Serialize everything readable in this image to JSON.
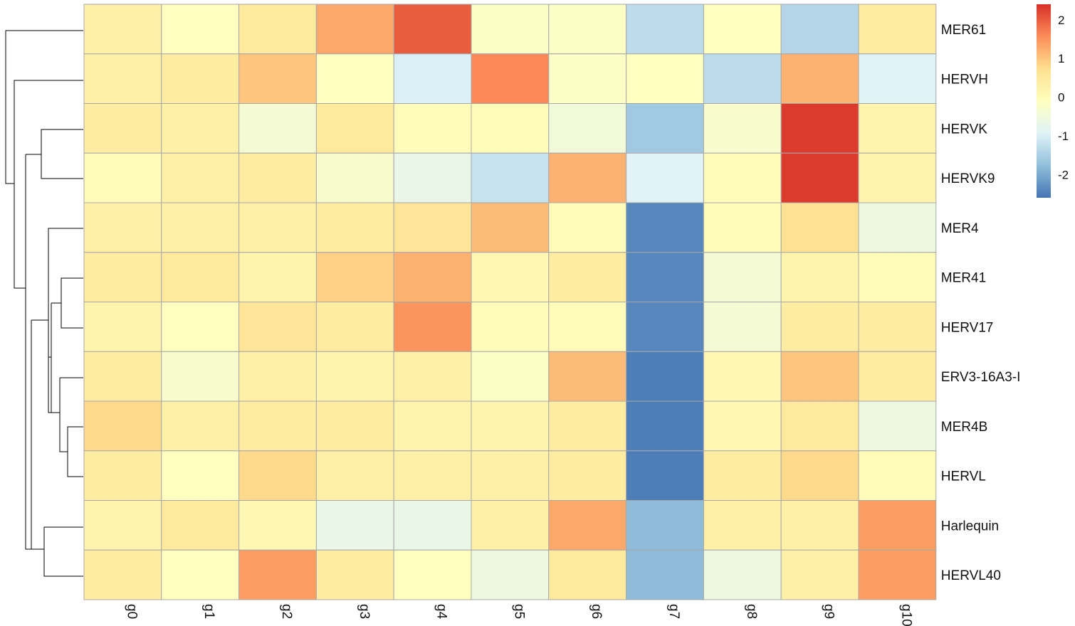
{
  "chart_data": {
    "type": "heatmap",
    "title": "",
    "rows": [
      "MER61",
      "HERVH",
      "HERVK",
      "HERVK9",
      "MER4",
      "MER41",
      "HERV17",
      "ERV3-16A3-I",
      "MER4B",
      "HERVL",
      "Harlequin",
      "HERVL40"
    ],
    "columns": [
      "g0",
      "g1",
      "g2",
      "g3",
      "g4",
      "g5",
      "g6",
      "g7",
      "g8",
      "g9",
      "g10"
    ],
    "values": [
      [
        0.3,
        -0.1,
        0.5,
        1.3,
        2.0,
        -0.2,
        -0.2,
        -1.3,
        -0.1,
        -1.4,
        0.4
      ],
      [
        0.3,
        0.4,
        1.0,
        -0.1,
        -1.0,
        1.6,
        -0.2,
        -0.1,
        -1.3,
        1.2,
        -0.9
      ],
      [
        0.4,
        0.3,
        -0.4,
        0.5,
        0.0,
        0.0,
        -0.5,
        -1.6,
        -0.3,
        2.3,
        0.2
      ],
      [
        0.0,
        0.3,
        0.4,
        -0.3,
        -0.7,
        -1.2,
        1.2,
        -0.9,
        0.0,
        2.3,
        0.2
      ],
      [
        0.3,
        0.3,
        0.3,
        0.4,
        0.6,
        1.1,
        0.0,
        -2.4,
        0.0,
        0.7,
        -0.6
      ],
      [
        0.4,
        0.5,
        0.2,
        0.9,
        1.2,
        0.1,
        0.4,
        -2.4,
        -0.4,
        0.2,
        0.0
      ],
      [
        0.2,
        -0.1,
        0.6,
        0.4,
        1.5,
        0.0,
        0.0,
        -2.4,
        -0.4,
        0.4,
        0.4
      ],
      [
        0.4,
        -0.3,
        0.3,
        0.2,
        0.3,
        -0.2,
        1.1,
        -2.5,
        0.1,
        1.0,
        0.4
      ],
      [
        0.8,
        0.3,
        0.4,
        0.4,
        0.2,
        0.2,
        0.4,
        -2.5,
        0.1,
        0.5,
        -0.6
      ],
      [
        0.4,
        -0.1,
        0.8,
        0.3,
        0.3,
        0.3,
        0.4,
        -2.5,
        0.4,
        0.8,
        0.0
      ],
      [
        0.2,
        0.5,
        0.1,
        -0.7,
        -0.7,
        0.3,
        1.3,
        -1.8,
        0.3,
        0.3,
        1.4
      ],
      [
        0.4,
        -0.1,
        1.4,
        0.4,
        -0.1,
        -0.6,
        0.5,
        -1.8,
        -0.6,
        0.3,
        1.4
      ]
    ],
    "colorbar": {
      "ticks": [
        2,
        1,
        0,
        -1,
        -2
      ],
      "tick_labels": [
        "2",
        "1",
        "0",
        "-1",
        "-2"
      ],
      "range": [
        -2.6,
        2.4
      ]
    },
    "palette": [
      "#4575b4",
      "#91bfdb",
      "#e0f3f8",
      "#ffffbf",
      "#fee090",
      "#fc8d59",
      "#d73027"
    ],
    "grid_color": "#a8a8a8",
    "row_dendrogram": true
  }
}
